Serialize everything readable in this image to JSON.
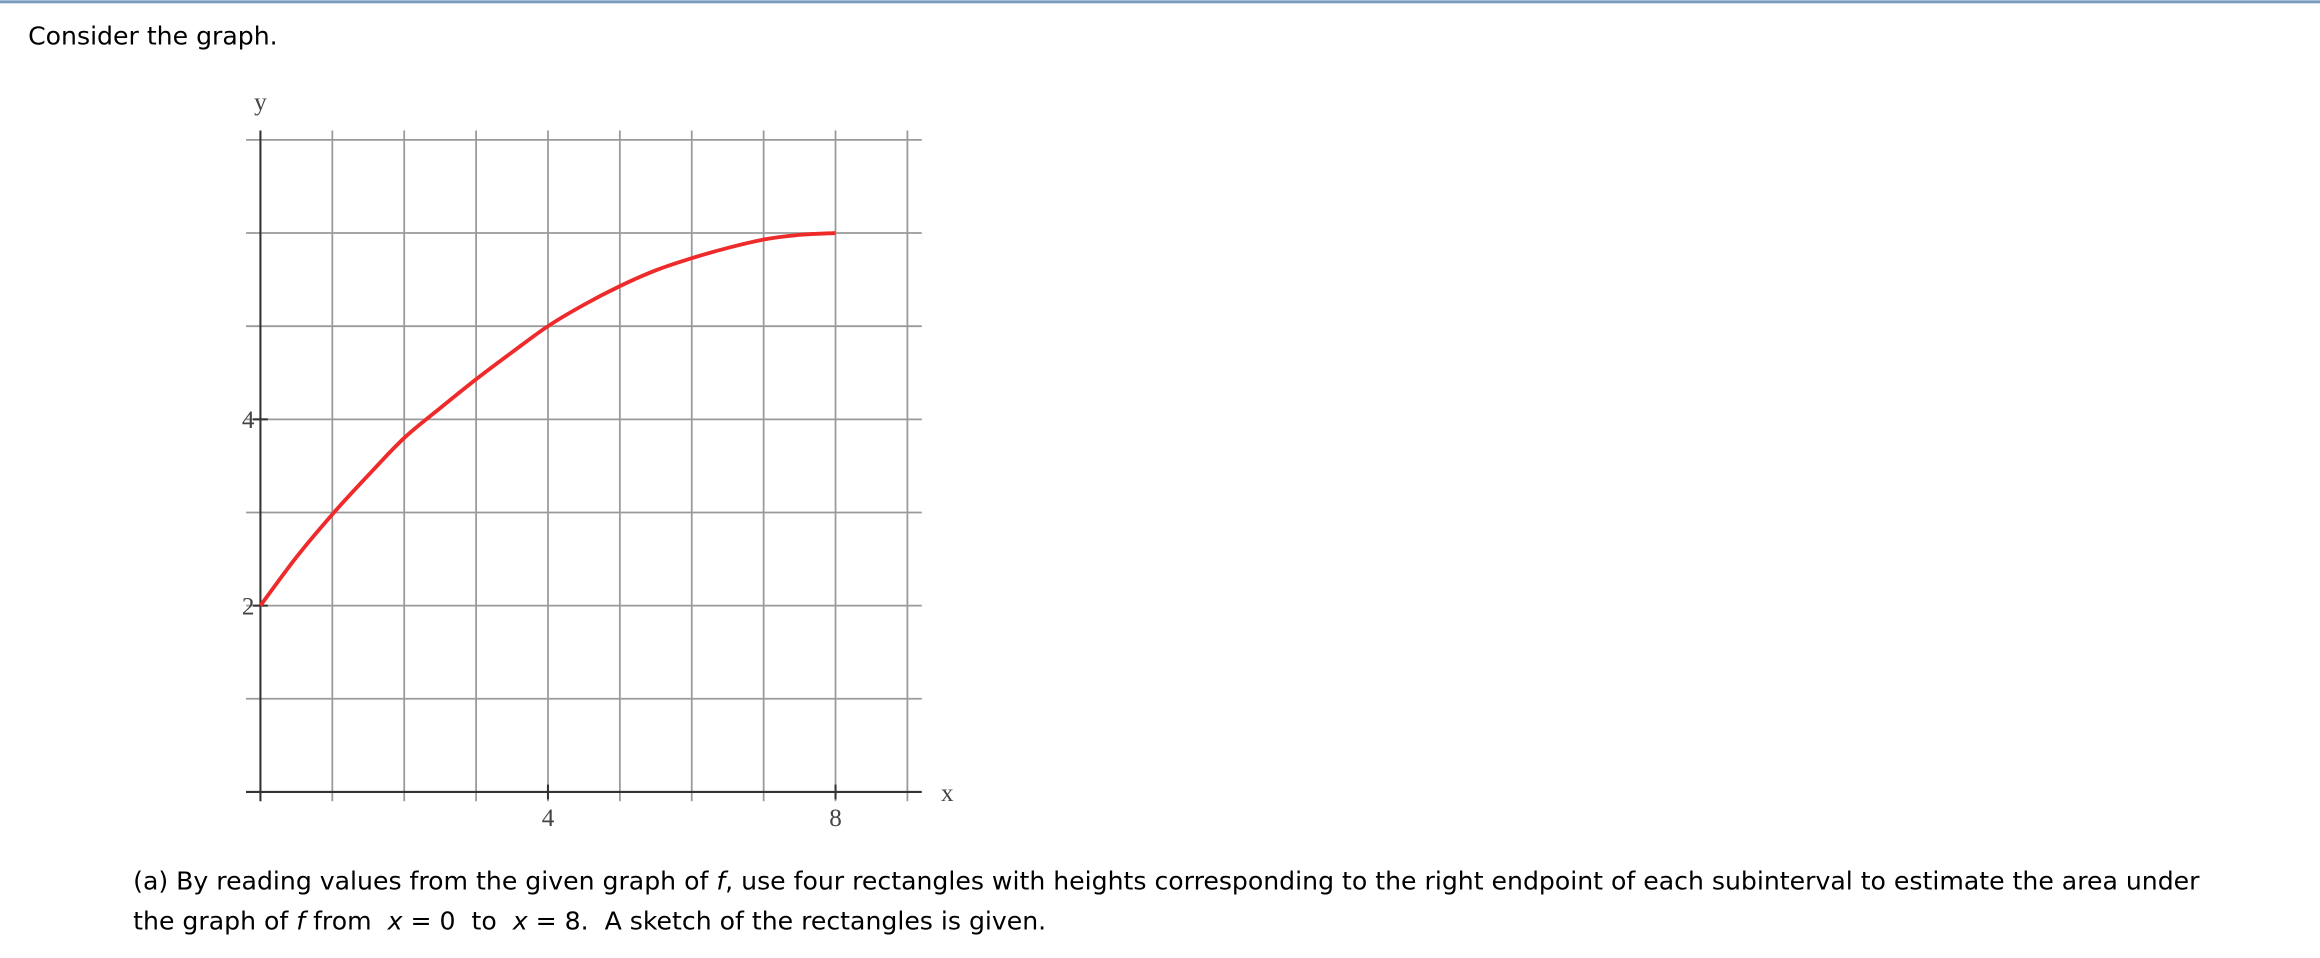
{
  "prompt": "Consider the graph.",
  "chart_data": {
    "type": "line",
    "x": [
      0,
      0.5,
      1,
      1.5,
      2,
      2.5,
      3,
      3.5,
      4,
      4.5,
      5,
      5.5,
      6,
      6.5,
      7,
      7.5,
      8
    ],
    "series": [
      {
        "color": "#ee2a2a",
        "values": [
          2,
          2.52,
          2.98,
          3.4,
          3.8,
          4.12,
          4.43,
          4.72,
          5,
          5.23,
          5.43,
          5.6,
          5.73,
          5.84,
          5.93,
          5.98,
          6
        ]
      }
    ],
    "xlabel": "x",
    "ylabel": "y",
    "xlim": [
      -0.2,
      9.2
    ],
    "ylim": [
      -0.1,
      7.1
    ],
    "xticks": [
      4,
      8
    ],
    "yticks": [
      2,
      4
    ],
    "xgrid": [
      1,
      2,
      3,
      4,
      5,
      6,
      7,
      8,
      9
    ],
    "ygrid": [
      1,
      2,
      3,
      4,
      5,
      6,
      7
    ]
  },
  "question": [
    [
      "(a) By reading values from the given graph of ",
      {
        "text": "f",
        "style": "italic"
      },
      ", use four rectangles with heights corresponding to the right endpoint of each subinterval to estimate the area under"
    ],
    [
      "the graph of ",
      {
        "text": "f",
        "style": "italic"
      },
      " from  ",
      {
        "text": "x",
        "style": "italic"
      },
      " = 0  to  ",
      {
        "text": "x",
        "style": "italic"
      },
      " = 8.  A sketch of the rectangles is given."
    ]
  ]
}
